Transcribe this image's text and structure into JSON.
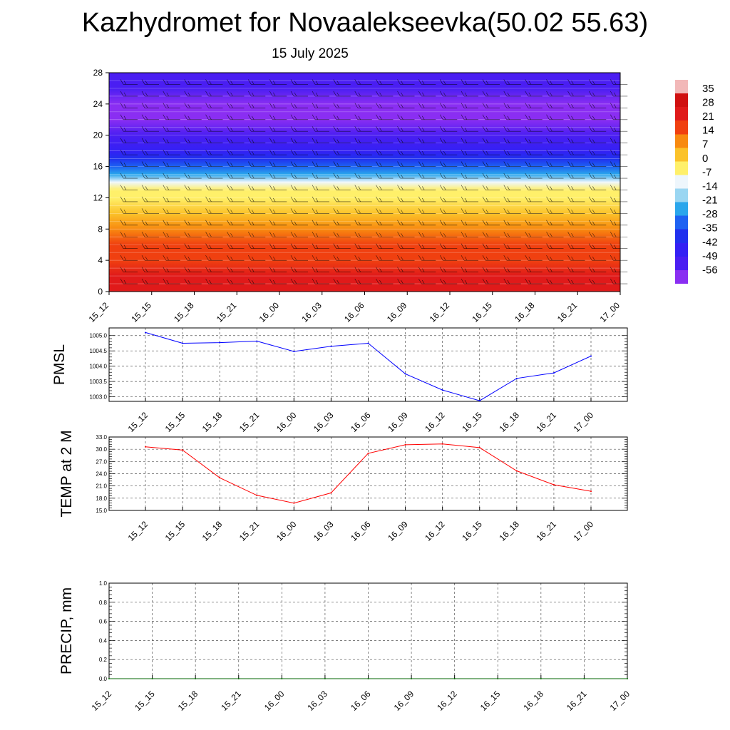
{
  "header": {
    "title": "Kazhydromet for Novaalekseevka(50.02 55.63)",
    "subtitle": "15 July 2025"
  },
  "time_labels": [
    "15_12",
    "15_15",
    "15_18",
    "15_21",
    "16_00",
    "16_03",
    "16_06",
    "16_09",
    "16_12",
    "16_15",
    "16_18",
    "16_21",
    "17_00"
  ],
  "chart_data": [
    {
      "type": "heatmap",
      "y_ticks": [
        0,
        4,
        8,
        12,
        16,
        20,
        24,
        28
      ],
      "ylim": [
        0,
        28
      ],
      "x": [
        "15_12",
        "15_15",
        "15_18",
        "15_21",
        "16_00",
        "16_03",
        "16_06",
        "16_09",
        "16_12",
        "16_15",
        "16_18",
        "16_21",
        "17_00"
      ],
      "colorbar": {
        "labels": [
          "35",
          "28",
          "21",
          "14",
          "7",
          "0",
          "-7",
          "-14",
          "-21",
          "-28",
          "-35",
          "-42",
          "-49",
          "-56"
        ],
        "range": [
          -63,
          35
        ]
      },
      "colorscale": [
        {
          "v": 35,
          "color": "#f2b8b8"
        },
        {
          "v": 28,
          "color": "#d01010"
        },
        {
          "v": 21,
          "color": "#e01a1a"
        },
        {
          "v": 14,
          "color": "#f04010"
        },
        {
          "v": 7,
          "color": "#f88a10"
        },
        {
          "v": 0,
          "color": "#fbc22a"
        },
        {
          "v": -7,
          "color": "#fff06a"
        },
        {
          "v": -14,
          "color": "#eef6fc"
        },
        {
          "v": -21,
          "color": "#9ad6f2"
        },
        {
          "v": -28,
          "color": "#2aa6ec"
        },
        {
          "v": -35,
          "color": "#1e62f2"
        },
        {
          "v": -42,
          "color": "#2030ee"
        },
        {
          "v": -49,
          "color": "#3420f4"
        },
        {
          "v": -56,
          "color": "#4a1ef2"
        },
        {
          "v": -63,
          "color": "#8a2ef2"
        }
      ],
      "temperature_profile": [
        {
          "h": 0,
          "t": 26
        },
        {
          "h": 2,
          "t": 22
        },
        {
          "h": 4,
          "t": 18
        },
        {
          "h": 6,
          "t": 15
        },
        {
          "h": 8,
          "t": 11
        },
        {
          "h": 10,
          "t": 6
        },
        {
          "h": 12,
          "t": 0
        },
        {
          "h": 13,
          "t": -5
        },
        {
          "h": 14,
          "t": -12
        },
        {
          "h": 15,
          "t": -22
        },
        {
          "h": 16,
          "t": -32
        },
        {
          "h": 17,
          "t": -40
        },
        {
          "h": 18,
          "t": -46
        },
        {
          "h": 20,
          "t": -52
        },
        {
          "h": 22,
          "t": -56
        },
        {
          "h": 24,
          "t": -56
        },
        {
          "h": 26,
          "t": -52
        },
        {
          "h": 28,
          "t": -50
        }
      ]
    },
    {
      "type": "line",
      "ylabel": "PMSL",
      "x": [
        "15_12",
        "15_15",
        "15_18",
        "15_21",
        "16_00",
        "16_03",
        "16_06",
        "16_09",
        "16_12",
        "16_15",
        "16_18",
        "16_21",
        "17_00"
      ],
      "series": [
        {
          "color": "#0000ff",
          "values": [
            1005.1,
            1004.75,
            1004.77,
            1004.82,
            1004.48,
            1004.65,
            1004.75,
            1003.75,
            1003.22,
            1002.87,
            1003.6,
            1003.78,
            1004.33
          ]
        }
      ],
      "ylim": [
        1002.85,
        1005.25
      ],
      "y_ticks": [
        "1003.0",
        "1003.5",
        "1004.0",
        "1004.5",
        "1005.0"
      ]
    },
    {
      "type": "line",
      "ylabel": "TEMP at 2 M",
      "x": [
        "15_12",
        "15_15",
        "15_18",
        "15_21",
        "16_00",
        "16_03",
        "16_06",
        "16_09",
        "16_12",
        "16_15",
        "16_18",
        "16_21",
        "17_00"
      ],
      "series": [
        {
          "color": "#ff0000",
          "values": [
            30.6,
            29.8,
            23.0,
            18.7,
            16.8,
            19.3,
            29.0,
            31.1,
            31.3,
            30.4,
            24.7,
            21.3,
            19.7
          ]
        }
      ],
      "ylim": [
        15,
        33
      ],
      "y_ticks": [
        "15.0",
        "18.0",
        "21.0",
        "24.0",
        "27.0",
        "30.0",
        "33.0"
      ]
    },
    {
      "type": "line",
      "ylabel": "PRECIP, mm",
      "x": [
        "15_12",
        "15_15",
        "15_18",
        "15_21",
        "16_00",
        "16_03",
        "16_06",
        "16_09",
        "16_12",
        "16_15",
        "16_18",
        "16_21",
        "17_00"
      ],
      "series": [
        {
          "color": "#006400",
          "values": [
            0,
            0,
            0,
            0,
            0,
            0,
            0,
            0,
            0,
            0,
            0,
            0,
            0
          ]
        }
      ],
      "ylim": [
        0,
        1
      ],
      "y_ticks": [
        "0.0",
        "0.2",
        "0.4",
        "0.6",
        "0.8",
        "1.0"
      ]
    }
  ]
}
